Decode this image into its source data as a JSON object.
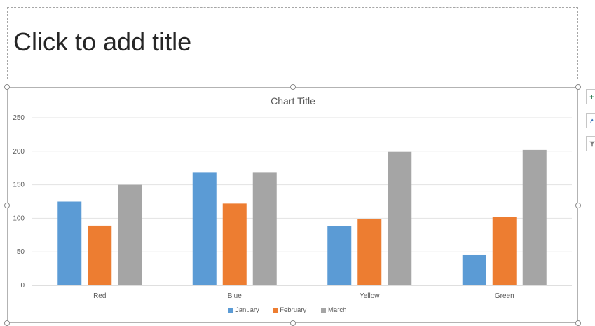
{
  "slide": {
    "title_placeholder": "Click to add title"
  },
  "side_buttons": {
    "add_icon": "plus-icon",
    "style_icon": "brush-icon",
    "filter_icon": "filter-icon"
  },
  "colors": {
    "january": "#5b9bd5",
    "february": "#ed7d31",
    "march": "#a5a5a5",
    "gridline": "#e3e3e3",
    "axis_text": "#595959"
  },
  "chart_data": {
    "type": "bar",
    "title": "Chart Title",
    "categories": [
      "Red",
      "Blue",
      "Yellow",
      "Green"
    ],
    "series": [
      {
        "name": "January",
        "values": [
          125,
          168,
          88,
          45
        ]
      },
      {
        "name": "February",
        "values": [
          89,
          122,
          99,
          102
        ]
      },
      {
        "name": "March",
        "values": [
          150,
          168,
          199,
          202
        ]
      }
    ],
    "yticks": [
      "0",
      "50",
      "100",
      "150",
      "200",
      "250"
    ],
    "ylim": [
      0,
      250
    ],
    "grid": true,
    "legend": "bottom"
  }
}
